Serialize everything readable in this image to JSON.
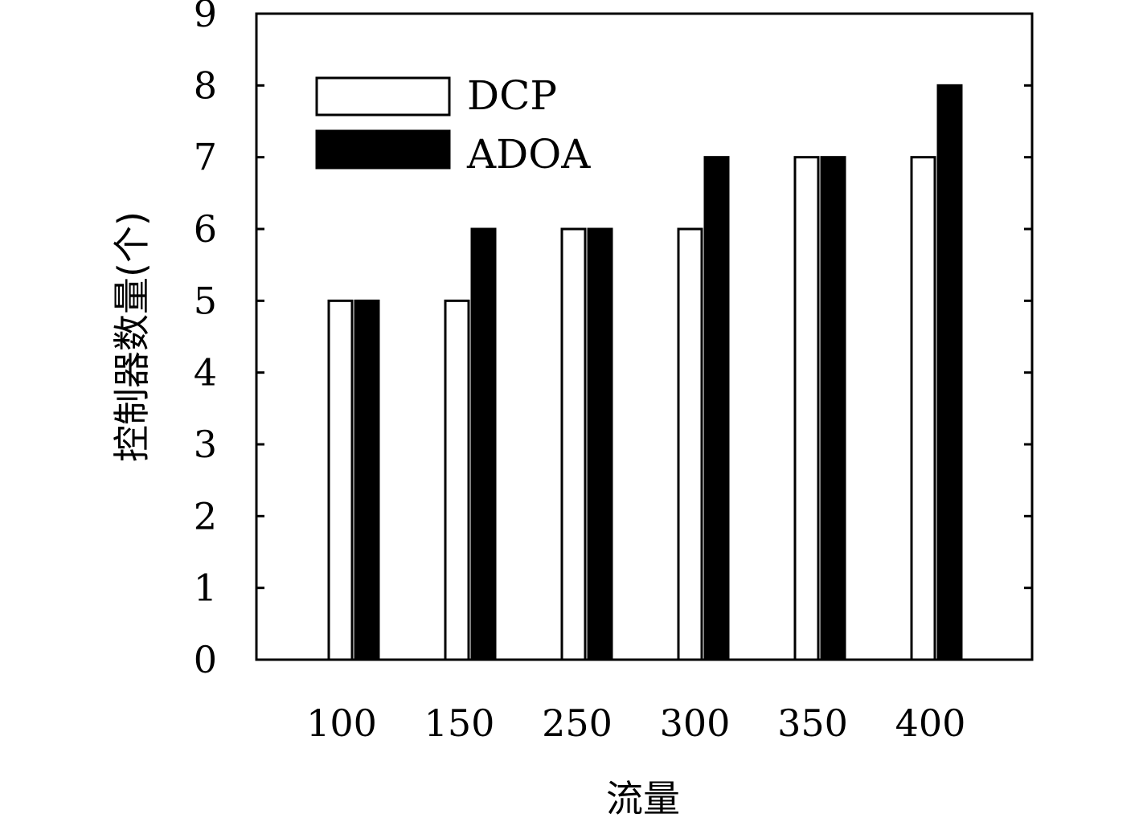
{
  "chart_data": {
    "type": "bar",
    "title": "",
    "xlabel": "流量",
    "ylabel": "控制器数量(个)",
    "categories": [
      "100",
      "150",
      "250",
      "300",
      "350",
      "400"
    ],
    "series": [
      {
        "name": "DCP",
        "values": [
          5,
          5,
          6,
          6,
          7,
          7
        ],
        "color": "#ffffff"
      },
      {
        "name": "ADOA",
        "values": [
          5,
          6,
          6,
          7,
          7,
          8
        ],
        "color": "#000000"
      }
    ],
    "ylim": [
      0,
      9
    ],
    "yticks": [
      "0",
      "1",
      "2",
      "3",
      "4",
      "5",
      "6",
      "7",
      "8",
      "9"
    ],
    "grid": false,
    "legend_position": "top-left"
  }
}
